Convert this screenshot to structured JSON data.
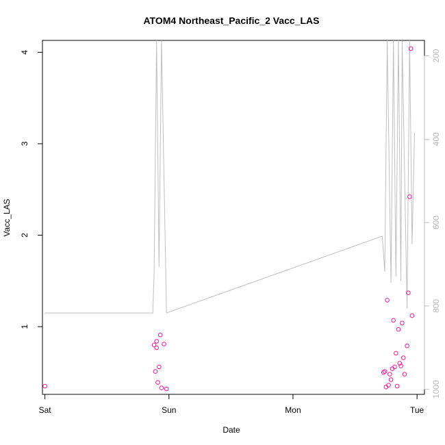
{
  "chart_data": {
    "type": "scatter",
    "title": "ATOM4 Northeast_Pacific_2 Vacc_LAS",
    "xlabel": "Date",
    "ylabel": "Vacc_LAS",
    "x_ticks": [
      "Sat",
      "Sun",
      "Mon",
      "Tue"
    ],
    "x_unit": "days from Saturday 00:00",
    "xlim": [
      -0.02,
      3.06
    ],
    "ylim": [
      0.26,
      4.13
    ],
    "y_ticks": [
      1,
      2,
      3,
      4
    ],
    "right_axis": {
      "ticks": [
        200,
        400,
        600,
        800,
        1000
      ],
      "lim": [
        1012,
        163
      ],
      "color": "#bebebe"
    },
    "colors": {
      "points": "#ff1493",
      "line": "#bebebe"
    },
    "series": [
      {
        "type": "points",
        "x": [
          0.0,
          0.88,
          0.89,
          0.9,
          0.91,
          0.9,
          0.92,
          0.93,
          0.94,
          0.96,
          0.98,
          2.73,
          2.74,
          2.75,
          2.76,
          2.77,
          2.78,
          2.79,
          2.8,
          2.81,
          2.82,
          2.83,
          2.84,
          2.85,
          2.86,
          2.87,
          2.88,
          2.89,
          2.9,
          2.92,
          2.93,
          2.94,
          2.95,
          2.96
        ],
        "y": [
          0.35,
          0.8,
          0.51,
          0.77,
          0.39,
          0.84,
          0.56,
          0.91,
          0.33,
          0.81,
          0.32,
          0.5,
          0.51,
          0.34,
          1.29,
          0.36,
          0.48,
          0.42,
          0.54,
          1.07,
          0.56,
          0.71,
          0.35,
          0.97,
          0.6,
          0.57,
          1.04,
          0.66,
          0.48,
          0.79,
          1.37,
          2.42,
          4.04,
          1.12
        ]
      },
      {
        "type": "line",
        "x": [
          0.0,
          0.87,
          0.88,
          0.9,
          0.92,
          0.94,
          0.98,
          2.72,
          2.74,
          2.76,
          2.79,
          2.81,
          2.83,
          2.85,
          2.87,
          2.88,
          2.92,
          2.94,
          2.96,
          2.98
        ],
        "y": [
          1.15,
          1.15,
          1.58,
          4.13,
          1.65,
          4.13,
          1.15,
          1.99,
          1.6,
          4.13,
          1.48,
          4.13,
          1.55,
          4.13,
          1.5,
          4.13,
          1.2,
          4.13,
          1.9,
          3.12
        ]
      }
    ]
  }
}
